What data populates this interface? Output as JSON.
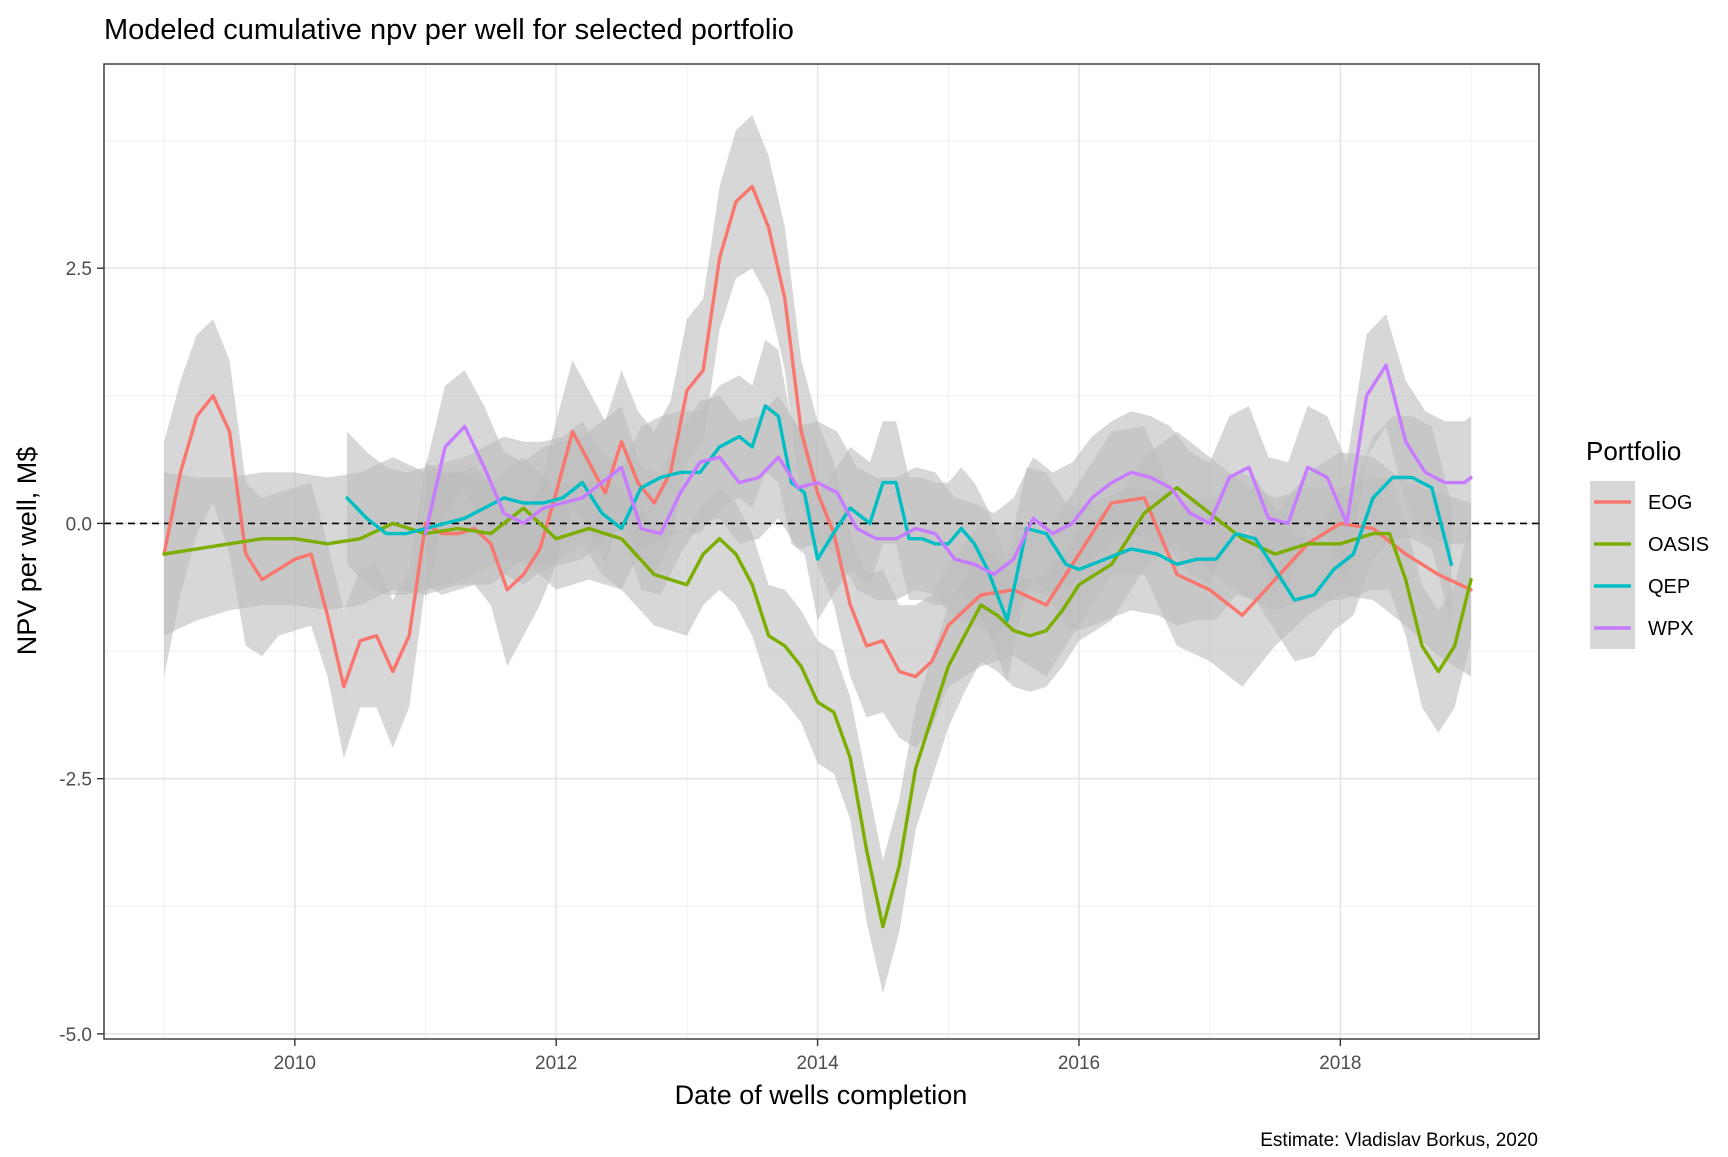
{
  "chart_data": {
    "type": "line",
    "title": "Modeled cumulative npv per well for selected portfolio",
    "xlabel": "Date of wells completion",
    "ylabel": "NPV per well, M$",
    "caption": "Estimate: Vladislav Borkus, 2020",
    "xlim": [
      2008.54,
      2019.52
    ],
    "ylim": [
      -5.05,
      4.5
    ],
    "x_ticks": [
      2010,
      2012,
      2014,
      2016,
      2018
    ],
    "x_tick_labels": [
      "2010",
      "2012",
      "2014",
      "2016",
      "2018"
    ],
    "y_ticks": [
      2.5,
      0.0,
      -2.5,
      -5.0
    ],
    "y_tick_labels": [
      "2.5",
      "0.0",
      "-2.5",
      "-5.0"
    ],
    "reference_line": {
      "y": 0,
      "style": "dashed",
      "color": "#000000"
    },
    "grid": true,
    "legend": {
      "title": "Portfolio",
      "position": "right"
    },
    "band_color": "#bdbdbd",
    "series": [
      {
        "name": "EOG",
        "color": "#F8766D",
        "x": [
          2009.0,
          2009.125,
          2009.25,
          2009.375,
          2009.5,
          2009.625,
          2009.75,
          2009.875,
          2010.0,
          2010.125,
          2010.25,
          2010.375,
          2010.5,
          2010.625,
          2010.75,
          2010.875,
          2011.0,
          2011.125,
          2011.25,
          2011.375,
          2011.5,
          2011.625,
          2011.75,
          2011.875,
          2012.0,
          2012.125,
          2012.25,
          2012.375,
          2012.5,
          2012.625,
          2012.75,
          2012.875,
          2013.0,
          2013.125,
          2013.25,
          2013.375,
          2013.5,
          2013.625,
          2013.75,
          2013.875,
          2014.0,
          2014.125,
          2014.25,
          2014.375,
          2014.5,
          2014.625,
          2014.75,
          2014.875,
          2015.0,
          2015.25,
          2015.5,
          2015.75,
          2016.0,
          2016.25,
          2016.5,
          2016.75,
          2017.0,
          2017.25,
          2017.5,
          2017.75,
          2018.0,
          2018.25,
          2018.5,
          2018.75,
          2019.0
        ],
        "y": [
          -0.3,
          0.5,
          1.05,
          1.25,
          0.9,
          -0.3,
          -0.55,
          -0.45,
          -0.35,
          -0.3,
          -0.9,
          -1.6,
          -1.15,
          -1.1,
          -1.45,
          -1.1,
          0.0,
          -0.1,
          -0.1,
          -0.05,
          -0.2,
          -0.65,
          -0.5,
          -0.25,
          0.3,
          0.9,
          0.6,
          0.3,
          0.8,
          0.4,
          0.2,
          0.5,
          1.3,
          1.5,
          2.6,
          3.15,
          3.3,
          2.9,
          2.2,
          0.9,
          0.3,
          -0.1,
          -0.8,
          -1.2,
          -1.15,
          -1.45,
          -1.5,
          -1.35,
          -1.0,
          -0.7,
          -0.65,
          -0.8,
          -0.3,
          0.2,
          0.25,
          -0.5,
          -0.65,
          -0.9,
          -0.55,
          -0.2,
          0.0,
          -0.05,
          -0.3,
          -0.5,
          -0.65
        ],
        "lower": [
          -1.5,
          -0.7,
          -0.1,
          0.2,
          -0.3,
          -1.2,
          -1.3,
          -1.1,
          -1.05,
          -1.0,
          -1.5,
          -2.3,
          -1.8,
          -1.8,
          -2.2,
          -1.8,
          -0.6,
          -0.7,
          -0.65,
          -0.6,
          -0.8,
          -1.4,
          -1.1,
          -0.8,
          -0.4,
          0.2,
          -0.1,
          -0.4,
          0.1,
          -0.3,
          -0.5,
          -0.2,
          0.6,
          0.8,
          1.9,
          2.4,
          2.5,
          2.2,
          1.5,
          0.2,
          -0.4,
          -0.8,
          -1.5,
          -1.9,
          -1.85,
          -2.1,
          -2.2,
          -2.0,
          -1.6,
          -1.4,
          -1.3,
          -1.5,
          -1.0,
          -0.5,
          -0.5,
          -1.2,
          -1.35,
          -1.6,
          -1.2,
          -0.9,
          -0.7,
          -0.75,
          -1.0,
          -1.3,
          -1.5
        ],
        "upper": [
          0.8,
          1.4,
          1.85,
          2.0,
          1.6,
          0.4,
          0.25,
          0.3,
          0.35,
          0.4,
          -0.2,
          -0.85,
          -0.45,
          -0.4,
          -0.75,
          -0.45,
          0.6,
          0.5,
          0.5,
          0.55,
          0.4,
          0.1,
          0.1,
          0.35,
          1.0,
          1.6,
          1.3,
          1.0,
          1.5,
          1.1,
          0.9,
          1.2,
          2.0,
          2.2,
          3.3,
          3.85,
          4.0,
          3.6,
          2.9,
          1.6,
          1.0,
          0.6,
          -0.1,
          -0.5,
          -0.45,
          -0.8,
          -0.8,
          -0.7,
          -0.4,
          0.0,
          0.0,
          -0.1,
          0.4,
          0.9,
          0.95,
          0.2,
          0.05,
          -0.2,
          0.1,
          0.5,
          0.7,
          0.65,
          0.4,
          0.3,
          0.2
        ]
      },
      {
        "name": "OASIS",
        "color": "#7CAE00",
        "x": [
          2009.0,
          2009.25,
          2009.5,
          2009.75,
          2010.0,
          2010.25,
          2010.5,
          2010.75,
          2011.0,
          2011.25,
          2011.5,
          2011.75,
          2012.0,
          2012.25,
          2012.5,
          2012.75,
          2013.0,
          2013.125,
          2013.25,
          2013.375,
          2013.5,
          2013.625,
          2013.75,
          2013.875,
          2014.0,
          2014.125,
          2014.25,
          2014.375,
          2014.5,
          2014.625,
          2014.75,
          2014.875,
          2015.0,
          2015.125,
          2015.25,
          2015.375,
          2015.5,
          2015.625,
          2015.75,
          2015.875,
          2016.0,
          2016.25,
          2016.5,
          2016.75,
          2017.0,
          2017.25,
          2017.5,
          2017.75,
          2018.0,
          2018.25,
          2018.375,
          2018.5,
          2018.625,
          2018.75,
          2018.875,
          2019.0
        ],
        "y": [
          -0.3,
          -0.25,
          -0.2,
          -0.15,
          -0.15,
          -0.2,
          -0.15,
          0.0,
          -0.1,
          -0.05,
          -0.1,
          0.15,
          -0.15,
          -0.05,
          -0.15,
          -0.5,
          -0.6,
          -0.3,
          -0.15,
          -0.3,
          -0.6,
          -1.1,
          -1.2,
          -1.4,
          -1.75,
          -1.85,
          -2.3,
          -3.2,
          -3.95,
          -3.35,
          -2.4,
          -1.9,
          -1.4,
          -1.1,
          -0.8,
          -0.9,
          -1.05,
          -1.1,
          -1.05,
          -0.85,
          -0.6,
          -0.4,
          0.1,
          0.35,
          0.1,
          -0.15,
          -0.3,
          -0.2,
          -0.2,
          -0.1,
          -0.1,
          -0.55,
          -1.2,
          -1.45,
          -1.2,
          -0.55
        ],
        "lower": [
          -1.1,
          -0.95,
          -0.85,
          -0.8,
          -0.8,
          -0.85,
          -0.8,
          -0.65,
          -0.7,
          -0.6,
          -0.6,
          -0.35,
          -0.65,
          -0.55,
          -0.65,
          -1.0,
          -1.1,
          -0.8,
          -0.65,
          -0.8,
          -1.1,
          -1.6,
          -1.75,
          -1.95,
          -2.35,
          -2.45,
          -2.9,
          -3.9,
          -4.6,
          -4.0,
          -3.0,
          -2.5,
          -2.0,
          -1.65,
          -1.35,
          -1.45,
          -1.6,
          -1.65,
          -1.6,
          -1.4,
          -1.15,
          -0.95,
          -0.45,
          -0.2,
          -0.45,
          -0.7,
          -0.85,
          -0.75,
          -0.75,
          -0.65,
          -0.65,
          -1.1,
          -1.8,
          -2.05,
          -1.8,
          -1.15
        ],
        "upper": [
          0.5,
          0.45,
          0.45,
          0.5,
          0.5,
          0.45,
          0.5,
          0.65,
          0.5,
          0.5,
          0.4,
          0.65,
          0.35,
          0.45,
          0.35,
          0.0,
          -0.1,
          0.2,
          0.35,
          0.2,
          -0.1,
          -0.6,
          -0.65,
          -0.85,
          -1.15,
          -1.25,
          -1.7,
          -2.5,
          -3.3,
          -2.7,
          -1.8,
          -1.3,
          -0.8,
          -0.55,
          -0.25,
          -0.35,
          -0.5,
          -0.55,
          -0.5,
          -0.3,
          -0.05,
          0.15,
          0.65,
          0.9,
          0.65,
          0.4,
          0.25,
          0.35,
          0.35,
          0.45,
          0.45,
          0.0,
          -0.6,
          -0.85,
          -0.6,
          0.05
        ]
      },
      {
        "name": "QEP",
        "color": "#00BFC4",
        "x": [
          2010.4,
          2010.55,
          2010.7,
          2010.85,
          2011.0,
          2011.15,
          2011.3,
          2011.45,
          2011.6,
          2011.75,
          2011.9,
          2012.05,
          2012.2,
          2012.35,
          2012.5,
          2012.65,
          2012.8,
          2012.95,
          2013.1,
          2013.25,
          2013.4,
          2013.5,
          2013.6,
          2013.7,
          2013.8,
          2013.9,
          2014.0,
          2014.12,
          2014.25,
          2014.4,
          2014.5,
          2014.6,
          2014.7,
          2014.8,
          2014.9,
          2015.0,
          2015.1,
          2015.2,
          2015.3,
          2015.45,
          2015.6,
          2015.75,
          2015.9,
          2016.0,
          2016.2,
          2016.4,
          2016.6,
          2016.75,
          2016.9,
          2017.05,
          2017.2,
          2017.35,
          2017.5,
          2017.65,
          2017.8,
          2017.95,
          2018.1,
          2018.25,
          2018.4,
          2018.55,
          2018.7,
          2018.85
        ],
        "y": [
          0.25,
          0.05,
          -0.1,
          -0.1,
          -0.05,
          0.0,
          0.05,
          0.15,
          0.25,
          0.2,
          0.2,
          0.25,
          0.4,
          0.1,
          -0.05,
          0.35,
          0.45,
          0.5,
          0.5,
          0.75,
          0.85,
          0.75,
          1.15,
          1.05,
          0.4,
          0.3,
          -0.35,
          -0.1,
          0.15,
          0.0,
          0.4,
          0.4,
          -0.15,
          -0.15,
          -0.2,
          -0.2,
          -0.05,
          -0.2,
          -0.45,
          -0.95,
          -0.05,
          -0.1,
          -0.4,
          -0.45,
          -0.35,
          -0.25,
          -0.3,
          -0.4,
          -0.35,
          -0.35,
          -0.1,
          -0.15,
          -0.45,
          -0.75,
          -0.7,
          -0.45,
          -0.3,
          0.25,
          0.45,
          0.45,
          0.35,
          -0.4
        ],
        "lower": [
          -0.4,
          -0.6,
          -0.7,
          -0.7,
          -0.65,
          -0.6,
          -0.55,
          -0.45,
          -0.35,
          -0.4,
          -0.4,
          -0.35,
          -0.2,
          -0.5,
          -0.65,
          -0.25,
          -0.15,
          -0.1,
          -0.1,
          0.15,
          0.25,
          0.15,
          0.5,
          0.4,
          -0.2,
          -0.3,
          -0.95,
          -0.7,
          -0.45,
          -0.6,
          -0.2,
          -0.2,
          -0.75,
          -0.75,
          -0.8,
          -0.8,
          -0.65,
          -0.8,
          -1.05,
          -1.55,
          -0.65,
          -0.7,
          -1.0,
          -1.05,
          -0.95,
          -0.85,
          -0.9,
          -1.0,
          -0.95,
          -0.95,
          -0.7,
          -0.75,
          -1.05,
          -1.35,
          -1.3,
          -1.05,
          -0.9,
          -0.35,
          -0.15,
          -0.15,
          -0.25,
          -1.0
        ],
        "upper": [
          0.9,
          0.7,
          0.55,
          0.5,
          0.55,
          0.6,
          0.65,
          0.75,
          0.85,
          0.8,
          0.8,
          0.85,
          1.0,
          0.7,
          0.55,
          0.95,
          1.05,
          1.1,
          1.1,
          1.35,
          1.45,
          1.35,
          1.8,
          1.7,
          1.0,
          0.9,
          0.25,
          0.5,
          0.75,
          0.6,
          1.0,
          1.0,
          0.45,
          0.45,
          0.4,
          0.4,
          0.55,
          0.4,
          0.15,
          -0.35,
          0.55,
          0.5,
          0.2,
          0.15,
          0.25,
          0.35,
          0.3,
          0.2,
          0.25,
          0.25,
          0.5,
          0.45,
          0.15,
          -0.15,
          -0.1,
          0.15,
          0.3,
          0.85,
          1.05,
          1.05,
          0.95,
          0.2
        ]
      },
      {
        "name": "WPX",
        "color": "#C77CFF",
        "x": [
          2011.0,
          2011.15,
          2011.3,
          2011.45,
          2011.6,
          2011.75,
          2011.9,
          2012.05,
          2012.2,
          2012.35,
          2012.5,
          2012.65,
          2012.8,
          2012.95,
          2013.1,
          2013.25,
          2013.4,
          2013.55,
          2013.7,
          2013.85,
          2014.0,
          2014.15,
          2014.3,
          2014.45,
          2014.6,
          2014.75,
          2014.9,
          2015.05,
          2015.2,
          2015.35,
          2015.5,
          2015.65,
          2015.8,
          2015.95,
          2016.1,
          2016.25,
          2016.4,
          2016.55,
          2016.7,
          2016.85,
          2017.0,
          2017.15,
          2017.3,
          2017.45,
          2017.6,
          2017.75,
          2017.9,
          2018.05,
          2018.2,
          2018.35,
          2018.5,
          2018.65,
          2018.8,
          2018.95,
          2019.0
        ],
        "y": [
          -0.1,
          0.75,
          0.95,
          0.55,
          0.1,
          0.0,
          0.15,
          0.2,
          0.25,
          0.4,
          0.55,
          -0.05,
          -0.1,
          0.3,
          0.6,
          0.65,
          0.4,
          0.45,
          0.65,
          0.35,
          0.4,
          0.3,
          -0.05,
          -0.15,
          -0.15,
          -0.05,
          -0.1,
          -0.35,
          -0.4,
          -0.5,
          -0.35,
          0.05,
          -0.1,
          0.0,
          0.25,
          0.4,
          0.5,
          0.45,
          0.35,
          0.1,
          0.0,
          0.45,
          0.55,
          0.05,
          0.0,
          0.55,
          0.45,
          0.0,
          1.25,
          1.55,
          0.8,
          0.5,
          0.4,
          0.4,
          0.45
        ],
        "lower": [
          -0.75,
          0.1,
          0.35,
          -0.05,
          -0.5,
          -0.6,
          -0.45,
          -0.4,
          -0.35,
          -0.2,
          -0.05,
          -0.65,
          -0.7,
          -0.3,
          0.0,
          0.05,
          -0.2,
          -0.15,
          0.05,
          -0.25,
          -0.2,
          -0.3,
          -0.65,
          -0.75,
          -0.75,
          -0.65,
          -0.7,
          -0.95,
          -1.0,
          -1.1,
          -0.95,
          -0.55,
          -0.7,
          -0.6,
          -0.35,
          -0.2,
          -0.1,
          -0.15,
          -0.25,
          -0.5,
          -0.6,
          -0.15,
          -0.05,
          -0.55,
          -0.6,
          -0.05,
          -0.15,
          -0.6,
          0.65,
          0.95,
          0.2,
          -0.1,
          -0.2,
          -0.2,
          -0.15
        ],
        "upper": [
          0.55,
          1.35,
          1.5,
          1.15,
          0.7,
          0.6,
          0.75,
          0.8,
          0.85,
          1.0,
          1.15,
          0.55,
          0.5,
          0.9,
          1.2,
          1.25,
          1.0,
          1.05,
          1.25,
          0.95,
          1.0,
          0.9,
          0.55,
          0.45,
          0.45,
          0.55,
          0.5,
          0.25,
          0.2,
          0.1,
          0.25,
          0.65,
          0.5,
          0.6,
          0.85,
          1.0,
          1.1,
          1.05,
          0.95,
          0.7,
          0.6,
          1.05,
          1.15,
          0.65,
          0.6,
          1.15,
          1.05,
          0.6,
          1.85,
          2.05,
          1.4,
          1.1,
          1.0,
          1.0,
          1.05
        ]
      }
    ]
  }
}
